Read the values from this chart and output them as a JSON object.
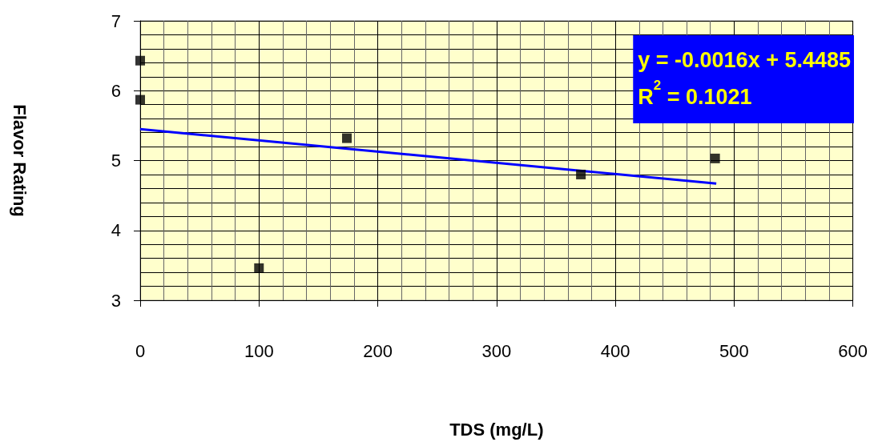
{
  "chart_data": {
    "type": "scatter",
    "xlabel": "TDS (mg/L)",
    "ylabel": "Flavor Rating",
    "annotations": [
      "y = -0.0016x + 5.4485",
      "R$^{2}$ = 0.1021"
    ],
    "series": [
      {
        "color": "#000000",
        "x": [
          0,
          0,
          100,
          174,
          371,
          484
        ],
        "values": [
          6.43,
          5.87,
          3.46,
          5.32,
          4.8,
          5.03
        ]
      },
      {
        "type": "line",
        "color": "#0000ff",
        "marker": "none",
        "x": [
          0,
          485
        ],
        "values": [
          5.45,
          4.67
        ]
      }
    ],
    "xlim": [
      0,
      600
    ],
    "xticks": [
      0,
      100,
      200,
      300,
      400,
      500,
      600
    ],
    "ylim": [
      3,
      7
    ],
    "yticks": [
      3,
      4,
      5,
      6,
      7
    ],
    "grid": true,
    "marker": "square"
  }
}
